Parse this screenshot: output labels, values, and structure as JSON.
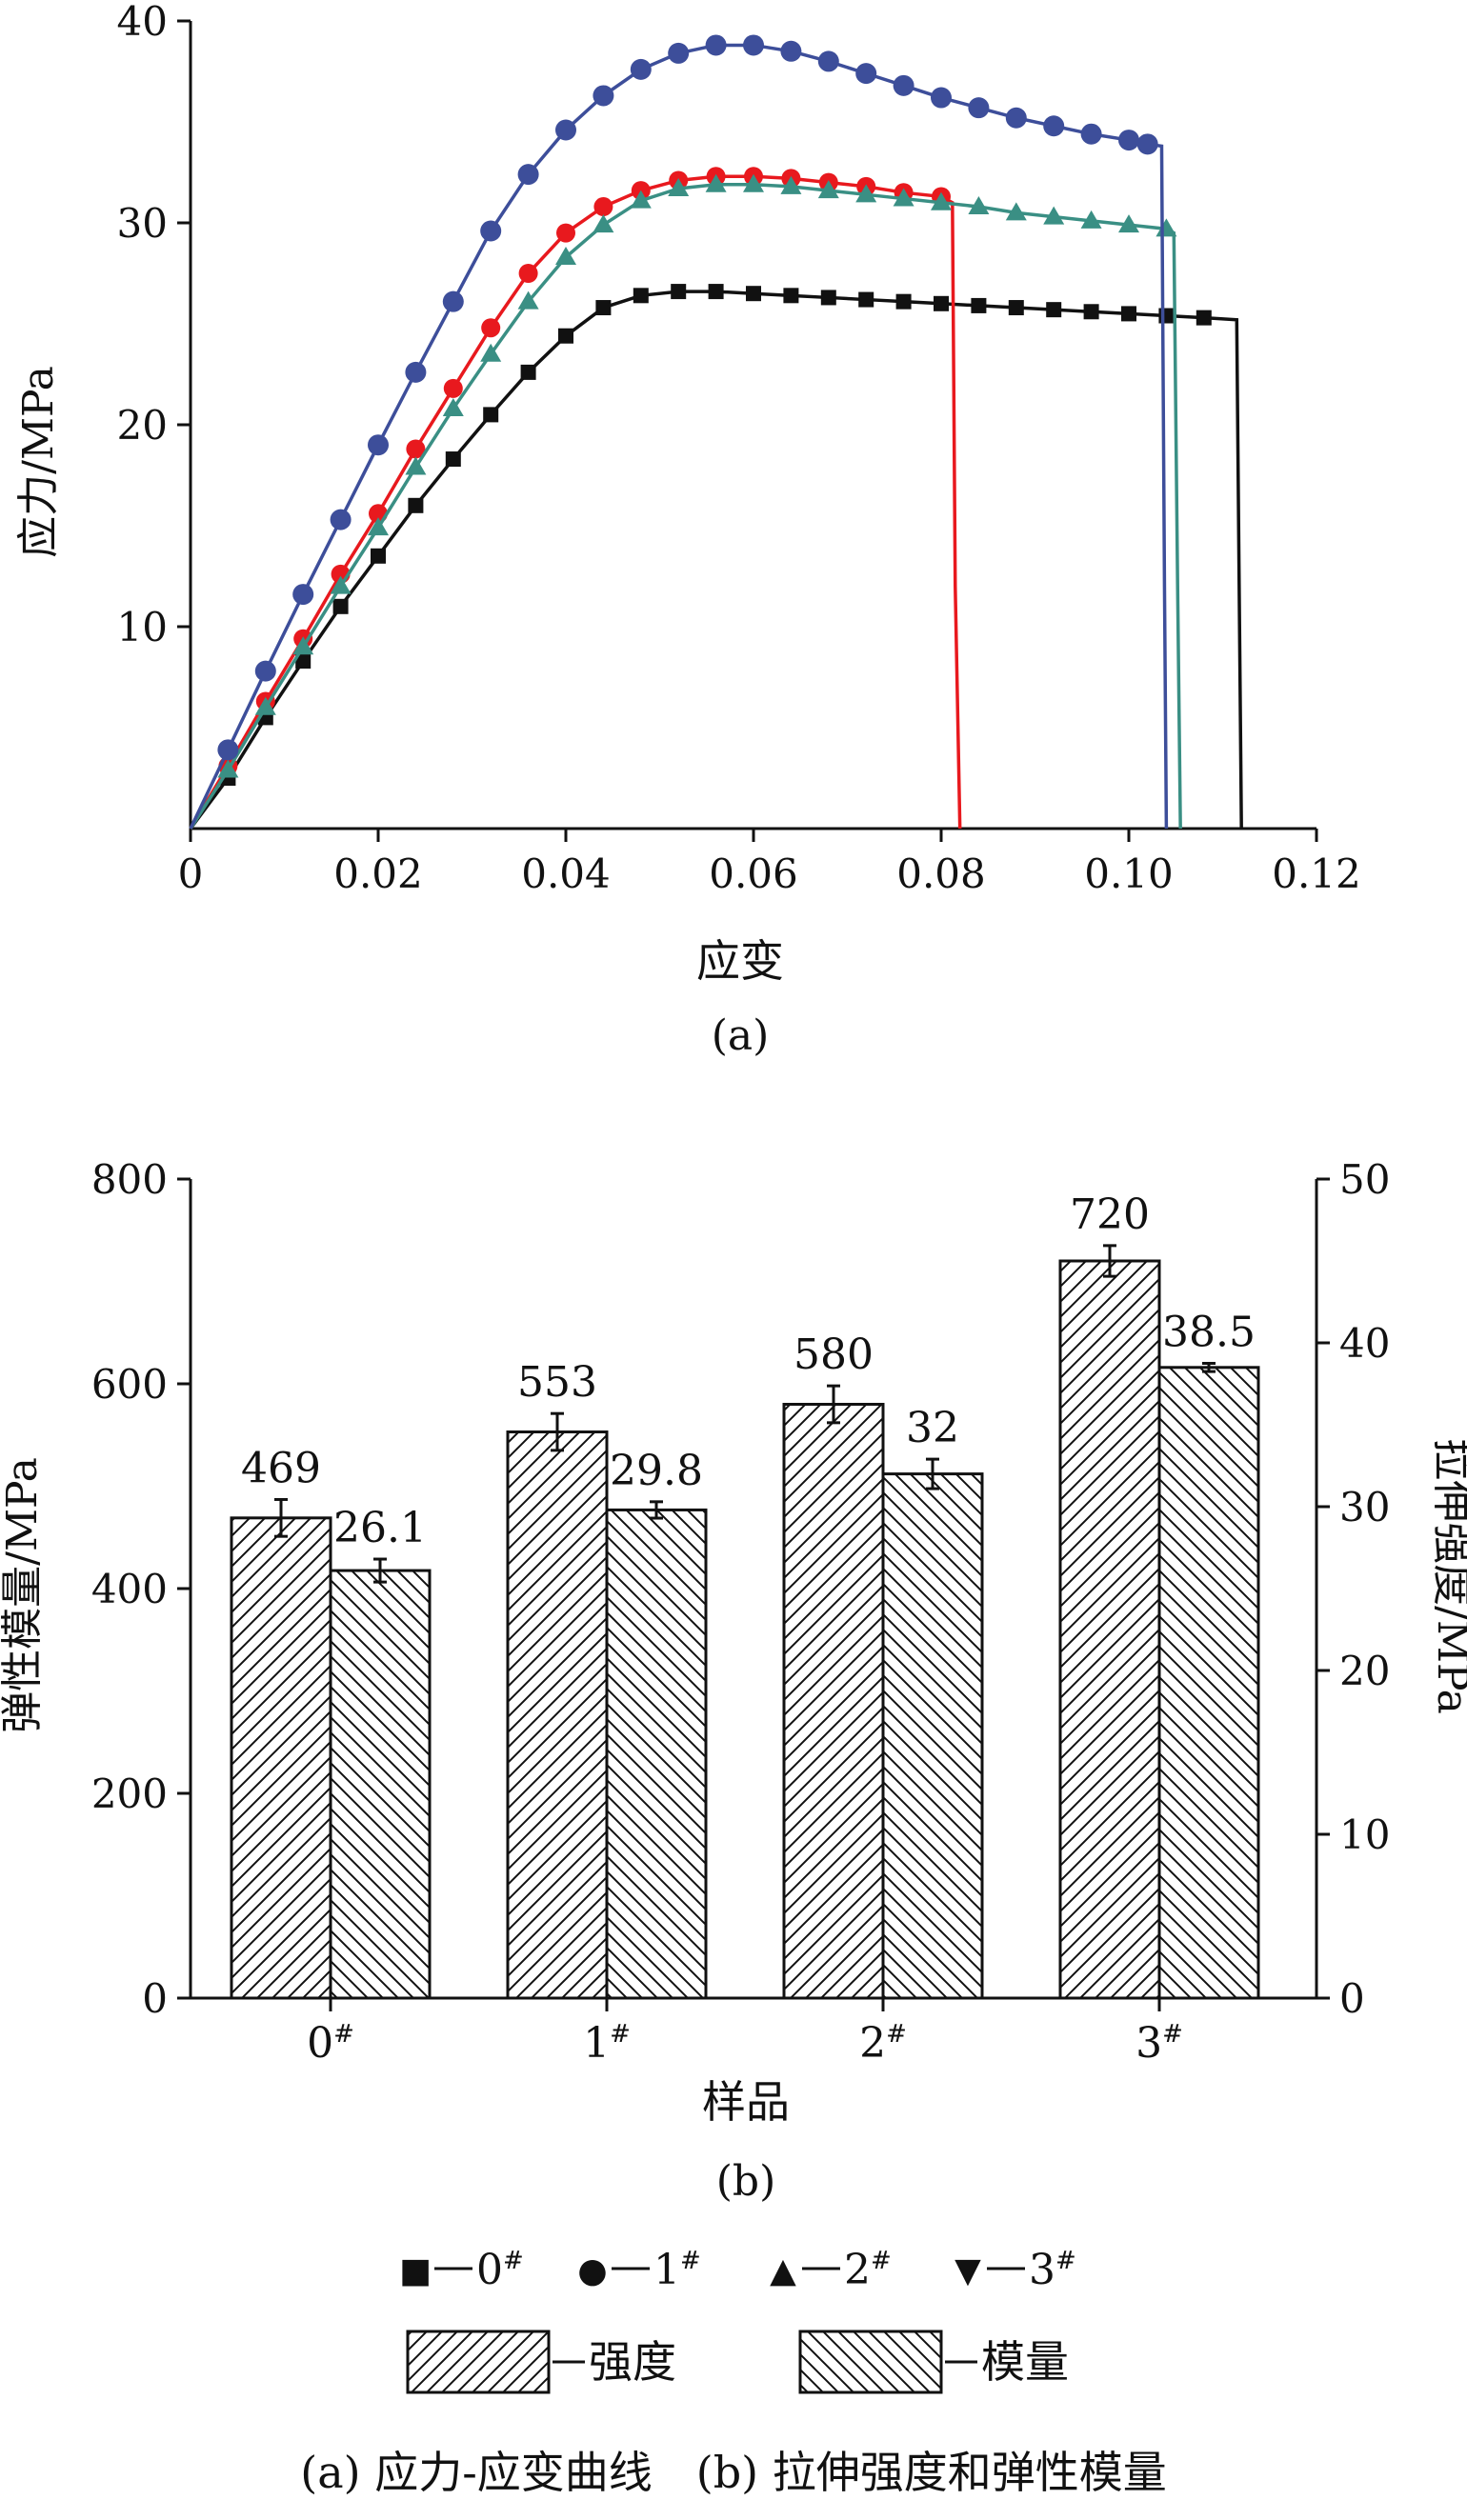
{
  "chart_data": [
    {
      "type": "line",
      "panel_label": "(a)",
      "xlabel": "应变",
      "ylabel": "应力/MPa",
      "xlim": [
        0,
        0.12
      ],
      "ylim": [
        0,
        40
      ],
      "x_ticks": [
        "0",
        "0.02",
        "0.04",
        "0.06",
        "0.08",
        "0.10",
        "0.12"
      ],
      "y_ticks": [
        "10",
        "20",
        "30",
        "40"
      ],
      "series": [
        {
          "name": "0#",
          "color": "#111111",
          "marker": "square",
          "x": [
            0,
            0.004,
            0.008,
            0.012,
            0.016,
            0.02,
            0.024,
            0.028,
            0.032,
            0.036,
            0.04,
            0.044,
            0.048,
            0.052,
            0.056,
            0.06,
            0.064,
            0.068,
            0.072,
            0.076,
            0.08,
            0.084,
            0.088,
            0.092,
            0.096,
            0.1,
            0.104,
            0.108,
            0.1115,
            0.1118,
            0.112
          ],
          "y": [
            0,
            2.5,
            5.5,
            8.3,
            11.0,
            13.5,
            16.0,
            18.3,
            20.5,
            22.6,
            24.4,
            25.8,
            26.4,
            26.6,
            26.6,
            26.5,
            26.4,
            26.3,
            26.2,
            26.1,
            26.0,
            25.9,
            25.8,
            25.7,
            25.6,
            25.5,
            25.4,
            25.3,
            25.2,
            10.0,
            0
          ]
        },
        {
          "name": "1#",
          "color": "#e8191e",
          "marker": "circle",
          "x": [
            0,
            0.004,
            0.008,
            0.012,
            0.016,
            0.02,
            0.024,
            0.028,
            0.032,
            0.036,
            0.04,
            0.044,
            0.048,
            0.052,
            0.056,
            0.06,
            0.064,
            0.068,
            0.072,
            0.076,
            0.08,
            0.0812,
            0.0815,
            0.082
          ],
          "y": [
            0,
            3.1,
            6.3,
            9.4,
            12.6,
            15.6,
            18.8,
            21.8,
            24.8,
            27.5,
            29.5,
            30.8,
            31.6,
            32.1,
            32.3,
            32.3,
            32.2,
            32.0,
            31.8,
            31.5,
            31.3,
            31.0,
            12.0,
            0
          ]
        },
        {
          "name": "2#",
          "color": "#3a8f84",
          "marker": "triangle",
          "x": [
            0,
            0.004,
            0.008,
            0.012,
            0.016,
            0.02,
            0.024,
            0.028,
            0.032,
            0.036,
            0.04,
            0.044,
            0.048,
            0.052,
            0.056,
            0.06,
            0.064,
            0.068,
            0.072,
            0.076,
            0.08,
            0.084,
            0.088,
            0.092,
            0.096,
            0.1,
            0.104,
            0.1048,
            0.1052,
            0.1055
          ],
          "y": [
            0,
            2.9,
            6.0,
            9.0,
            12.0,
            14.9,
            17.9,
            20.8,
            23.5,
            26.1,
            28.3,
            29.9,
            31.1,
            31.7,
            31.9,
            31.9,
            31.8,
            31.6,
            31.4,
            31.2,
            31.0,
            30.8,
            30.5,
            30.3,
            30.1,
            29.9,
            29.7,
            29.5,
            12.0,
            0
          ]
        },
        {
          "name": "3#",
          "color": "#3d4e9a",
          "marker": "triangle-down",
          "x": [
            0,
            0.004,
            0.008,
            0.012,
            0.016,
            0.02,
            0.024,
            0.028,
            0.032,
            0.036,
            0.04,
            0.044,
            0.048,
            0.052,
            0.056,
            0.06,
            0.064,
            0.068,
            0.072,
            0.076,
            0.08,
            0.084,
            0.088,
            0.092,
            0.096,
            0.1,
            0.102,
            0.1035,
            0.1038,
            0.104
          ],
          "y": [
            0,
            3.9,
            7.8,
            11.6,
            15.3,
            19.0,
            22.6,
            26.1,
            29.6,
            32.4,
            34.6,
            36.3,
            37.6,
            38.4,
            38.8,
            38.8,
            38.5,
            38.0,
            37.4,
            36.8,
            36.2,
            35.7,
            35.2,
            34.8,
            34.4,
            34.1,
            33.9,
            33.8,
            12.0,
            0
          ]
        }
      ]
    },
    {
      "type": "bar",
      "panel_label": "(b)",
      "xlabel": "样品",
      "ylabel": "弹性模量/MPa",
      "ylabel_right": "拉伸强度/MPa",
      "categories": [
        "0",
        "1",
        "2",
        "3"
      ],
      "category_suffix": "#",
      "ylim": [
        0,
        800
      ],
      "ylim_right": [
        0,
        50
      ],
      "y_ticks": [
        "0",
        "200",
        "400",
        "600",
        "800"
      ],
      "y_ticks_right": [
        "0",
        "10",
        "20",
        "30",
        "40",
        "50"
      ],
      "series": [
        {
          "name": "强度",
          "axis": "left",
          "pattern": "forward-hatch",
          "values": [
            469,
            553,
            580,
            720
          ],
          "labels": [
            "469",
            "553",
            "580",
            "720"
          ],
          "errors": [
            18,
            18,
            18,
            15
          ]
        },
        {
          "name": "模量",
          "axis": "right",
          "pattern": "back-hatch",
          "values": [
            26.1,
            29.8,
            32,
            38.5
          ],
          "labels": [
            "26.1",
            "29.8",
            "32",
            "38.5"
          ],
          "errors": [
            0.7,
            0.5,
            0.9,
            0.25
          ]
        }
      ]
    }
  ],
  "legend": {
    "series_markers": [
      {
        "symbol": "■",
        "label": "0",
        "sup": "#",
        "color": "#111111"
      },
      {
        "symbol": "●",
        "label": "1",
        "sup": "#",
        "color": "#e8191e"
      },
      {
        "symbol": "▲",
        "label": "2",
        "sup": "#",
        "color": "#2e7d3a"
      },
      {
        "symbol": "▼",
        "label": "3",
        "sup": "#",
        "color": "#2f3f9e"
      }
    ],
    "patterns": [
      {
        "pattern": "forward-hatch",
        "label": "强度"
      },
      {
        "pattern": "back-hatch",
        "label": "模量"
      }
    ]
  },
  "caption": "(a) 应力-应变曲线　(b) 拉伸强度和弹性模量"
}
